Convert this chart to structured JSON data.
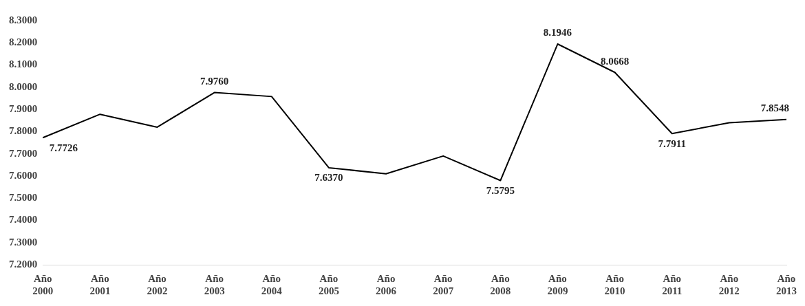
{
  "chart_data": {
    "type": "line",
    "categories": [
      "Año 2000",
      "Año 2001",
      "Año 2002",
      "Año 2003",
      "Año 2004",
      "Año 2005",
      "Año 2006",
      "Año 2007",
      "Año 2008",
      "Año 2009",
      "Año 2010",
      "Año 2011",
      "Año 2012",
      "Año 2013"
    ],
    "series": [
      {
        "color": "#000000",
        "values": [
          7.7726,
          7.878,
          7.82,
          7.976,
          7.958,
          7.637,
          7.61,
          7.69,
          7.5795,
          8.1946,
          8.0668,
          7.7911,
          7.84,
          7.8548
        ],
        "value_labels": [
          "7.7726",
          null,
          null,
          "7.9760",
          null,
          "7.6370",
          null,
          null,
          "7.5795",
          "8.1946",
          "8.0668",
          "7.7911",
          null,
          "7.8548"
        ]
      }
    ],
    "ylim": [
      7.2,
      8.3
    ],
    "yticks": [
      {
        "value": 7.2,
        "label": "7.2000"
      },
      {
        "value": 7.3,
        "label": "7.3000"
      },
      {
        "value": 7.4,
        "label": "7.4000"
      },
      {
        "value": 7.5,
        "label": "7.5000"
      },
      {
        "value": 7.6,
        "label": "7.6000"
      },
      {
        "value": 7.7,
        "label": "7.7000"
      },
      {
        "value": 7.8,
        "label": "7.8000"
      },
      {
        "value": 7.9,
        "label": "7.9000"
      },
      {
        "value": 8.0,
        "label": "8.0000"
      },
      {
        "value": 8.1,
        "label": "8.1000"
      },
      {
        "value": 8.2,
        "label": "8.2000"
      },
      {
        "value": 8.3,
        "label": "8.3000"
      }
    ],
    "grid": false,
    "legend": false,
    "marker": "none",
    "line_style": "solid"
  }
}
